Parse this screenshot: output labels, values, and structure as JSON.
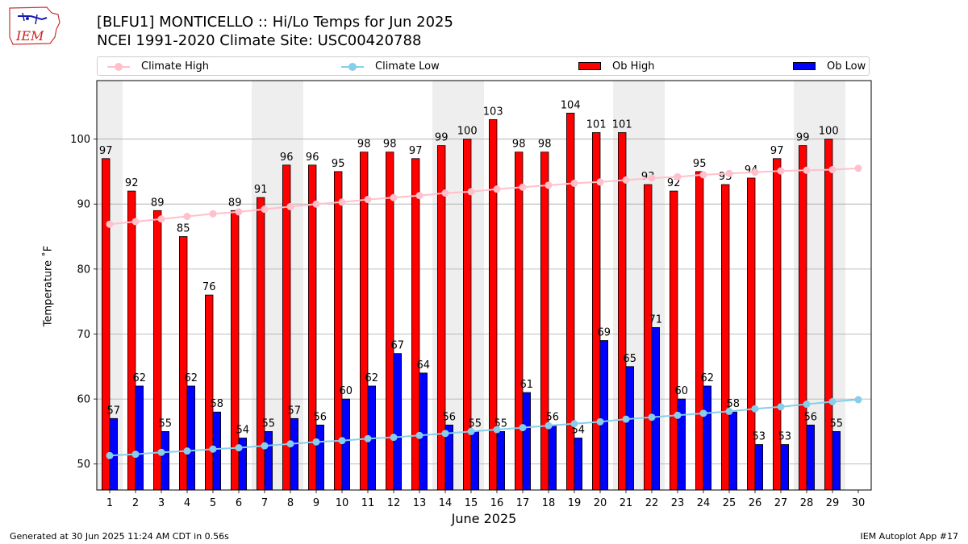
{
  "header": {
    "title_line1": "[BLFU1] MONTICELLO :: Hi/Lo Temps for Jun 2025",
    "title_line2": "NCEI 1991-2020 Climate Site: USC00420788",
    "logo_text": "IEM"
  },
  "legend": {
    "climate_high": "Climate High",
    "climate_low": "Climate Low",
    "ob_high": "Ob High",
    "ob_low": "Ob Low"
  },
  "colors": {
    "ob_high": "#ff0000",
    "ob_low": "#0000ff",
    "climate_high": "#ffc0cb",
    "climate_low": "#87ceeb",
    "weekend_band": "#eeeeee",
    "grid": "#aaaaaa"
  },
  "chart_data": {
    "type": "bar",
    "xlabel": "June 2025",
    "ylabel": "Temperature ˚F",
    "ylim": [
      46,
      109
    ],
    "yticks": [
      50,
      60,
      70,
      80,
      90,
      100
    ],
    "categories": [
      "1",
      "2",
      "3",
      "4",
      "5",
      "6",
      "7",
      "8",
      "9",
      "10",
      "11",
      "12",
      "13",
      "14",
      "15",
      "16",
      "17",
      "18",
      "19",
      "20",
      "21",
      "22",
      "23",
      "24",
      "25",
      "26",
      "27",
      "28",
      "29",
      "30"
    ],
    "shaded_days": [
      1,
      7,
      8,
      14,
      15,
      21,
      22,
      28,
      29
    ],
    "grid": "horizontal",
    "legend_position": "top",
    "series": [
      {
        "name": "Ob High",
        "kind": "bar",
        "values": [
          97,
          92,
          89,
          85,
          76,
          89,
          91,
          96,
          96,
          95,
          98,
          98,
          97,
          99,
          100,
          103,
          98,
          98,
          104,
          101,
          101,
          93,
          92,
          95,
          93,
          94,
          97,
          99,
          100,
          null
        ]
      },
      {
        "name": "Ob Low",
        "kind": "bar",
        "values": [
          57,
          62,
          55,
          62,
          58,
          54,
          55,
          57,
          56,
          60,
          62,
          67,
          64,
          56,
          55,
          55,
          61,
          56,
          54,
          69,
          65,
          71,
          60,
          62,
          58,
          53,
          53,
          56,
          55,
          null
        ]
      },
      {
        "name": "Climate High",
        "kind": "line",
        "values": [
          86.9,
          87.3,
          87.7,
          88.1,
          88.5,
          88.8,
          89.2,
          89.6,
          90.0,
          90.3,
          90.7,
          91.0,
          91.3,
          91.7,
          91.9,
          92.3,
          92.6,
          92.9,
          93.2,
          93.4,
          93.7,
          94.0,
          94.2,
          94.5,
          94.7,
          94.9,
          95.1,
          95.2,
          95.3,
          95.5
        ]
      },
      {
        "name": "Climate Low",
        "kind": "line",
        "values": [
          51.3,
          51.5,
          51.8,
          52.0,
          52.3,
          52.5,
          52.8,
          53.1,
          53.4,
          53.6,
          53.9,
          54.1,
          54.4,
          54.7,
          55.0,
          55.3,
          55.6,
          55.9,
          56.2,
          56.5,
          56.9,
          57.2,
          57.5,
          57.8,
          58.1,
          58.5,
          58.8,
          59.2,
          59.6,
          59.9
        ]
      }
    ]
  },
  "footer": {
    "left": "Generated at 30 Jun 2025 11:24 AM CDT in 0.56s",
    "right": "IEM Autoplot App #17"
  }
}
